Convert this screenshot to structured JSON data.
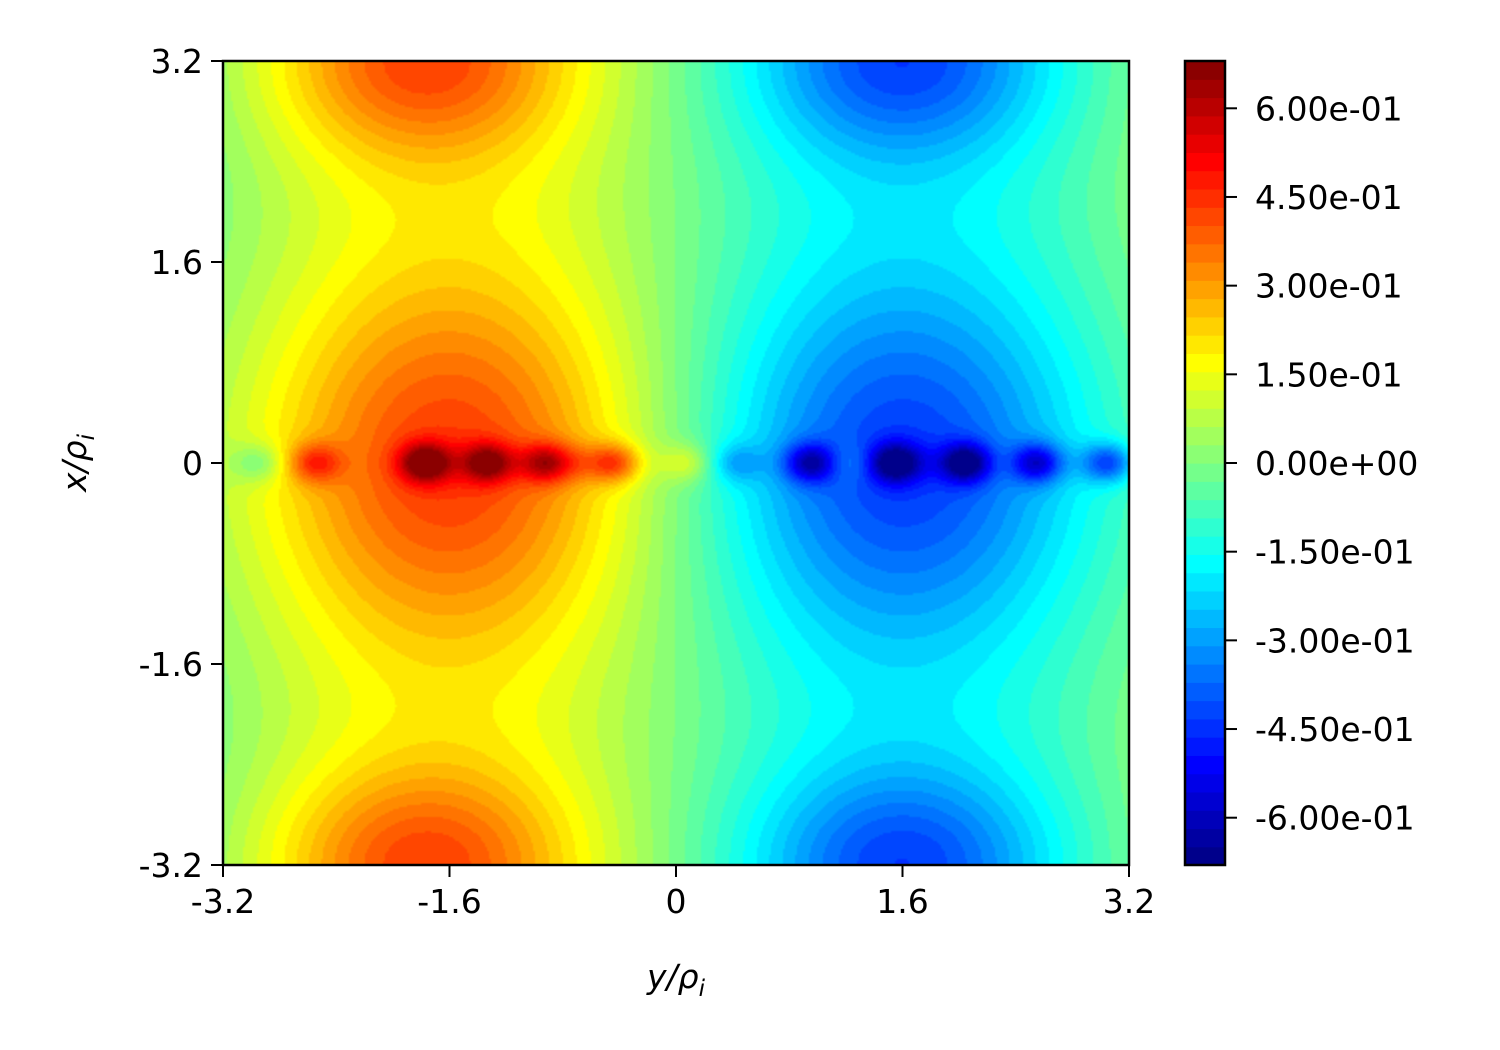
{
  "chart_data": {
    "type": "heatmap",
    "title": "",
    "xlabel": {
      "base": "y/ρ",
      "sub": "i"
    },
    "ylabel": {
      "base": "x/ρ",
      "sub": "i"
    },
    "xlim": [
      -3.2,
      3.2
    ],
    "ylim": [
      -3.2,
      3.2
    ],
    "x_ticks": [
      "-3.2",
      "-1.6",
      "0",
      "1.6",
      "3.2"
    ],
    "y_ticks": [
      "-3.2",
      "-1.6",
      "0",
      "1.6",
      "3.2"
    ],
    "colormap": "jet",
    "colorbar": {
      "vmin": -0.68,
      "vmax": 0.68,
      "ticks": [
        {
          "value": 0.6,
          "label": "6.00e-01"
        },
        {
          "value": 0.45,
          "label": "4.50e-01"
        },
        {
          "value": 0.3,
          "label": "3.00e-01"
        },
        {
          "value": 0.15,
          "label": "1.50e-01"
        },
        {
          "value": 0.0,
          "label": "0.00e+00"
        },
        {
          "value": -0.15,
          "label": "-1.50e-01"
        },
        {
          "value": -0.3,
          "label": "-3.00e-01"
        },
        {
          "value": -0.45,
          "label": "-4.50e-01"
        },
        {
          "value": -0.6,
          "label": "-6.00e-01"
        }
      ]
    },
    "grid": false,
    "field_features": [
      {
        "kind": "broad_lobe",
        "x": -1.6,
        "y": 0.0,
        "value": 0.37
      },
      {
        "kind": "broad_lobe",
        "x": 1.6,
        "y": 0.0,
        "value": -0.37
      },
      {
        "kind": "edge_lobe",
        "x": -1.8,
        "y": 3.2,
        "value": 0.3
      },
      {
        "kind": "edge_lobe",
        "x": -1.8,
        "y": -3.2,
        "value": 0.3
      },
      {
        "kind": "edge_lobe",
        "x": 1.6,
        "y": 3.2,
        "value": -0.3
      },
      {
        "kind": "edge_lobe",
        "x": 1.6,
        "y": -3.2,
        "value": -0.3
      },
      {
        "kind": "core_blob",
        "x": -1.77,
        "y": 0.0,
        "value": 0.66
      },
      {
        "kind": "core_blob",
        "x": -1.33,
        "y": 0.0,
        "value": 0.58
      },
      {
        "kind": "core_blob",
        "x": -0.92,
        "y": 0.0,
        "value": 0.55
      },
      {
        "kind": "core_blob",
        "x": -0.43,
        "y": 0.0,
        "value": 0.48
      },
      {
        "kind": "core_blob",
        "x": -2.55,
        "y": 0.0,
        "value": 0.4
      },
      {
        "kind": "core_blob",
        "x": 0.08,
        "y": 0.0,
        "value": 0.25
      },
      {
        "kind": "core_blob",
        "x": 0.95,
        "y": 0.0,
        "value": -0.58
      },
      {
        "kind": "core_blob",
        "x": 1.55,
        "y": 0.0,
        "value": -0.62
      },
      {
        "kind": "core_blob",
        "x": 2.05,
        "y": 0.0,
        "value": -0.66
      },
      {
        "kind": "core_blob",
        "x": 2.55,
        "y": 0.0,
        "value": -0.6
      },
      {
        "kind": "core_blob",
        "x": 3.05,
        "y": 0.0,
        "value": -0.55
      },
      {
        "kind": "core_blob",
        "x": -2.95,
        "y": 0.0,
        "value": -0.25
      },
      {
        "kind": "core_blob",
        "x": 0.42,
        "y": 0.0,
        "value": -0.25
      },
      {
        "kind": "core_blob",
        "x": 1.22,
        "y": 0.0,
        "value": 0.15
      },
      {
        "kind": "core_blob",
        "x": -0.68,
        "y": 0.0,
        "value": 0.15
      },
      {
        "kind": "core_blob",
        "x": 2.3,
        "y": 0.0,
        "value": 0.05
      }
    ]
  }
}
